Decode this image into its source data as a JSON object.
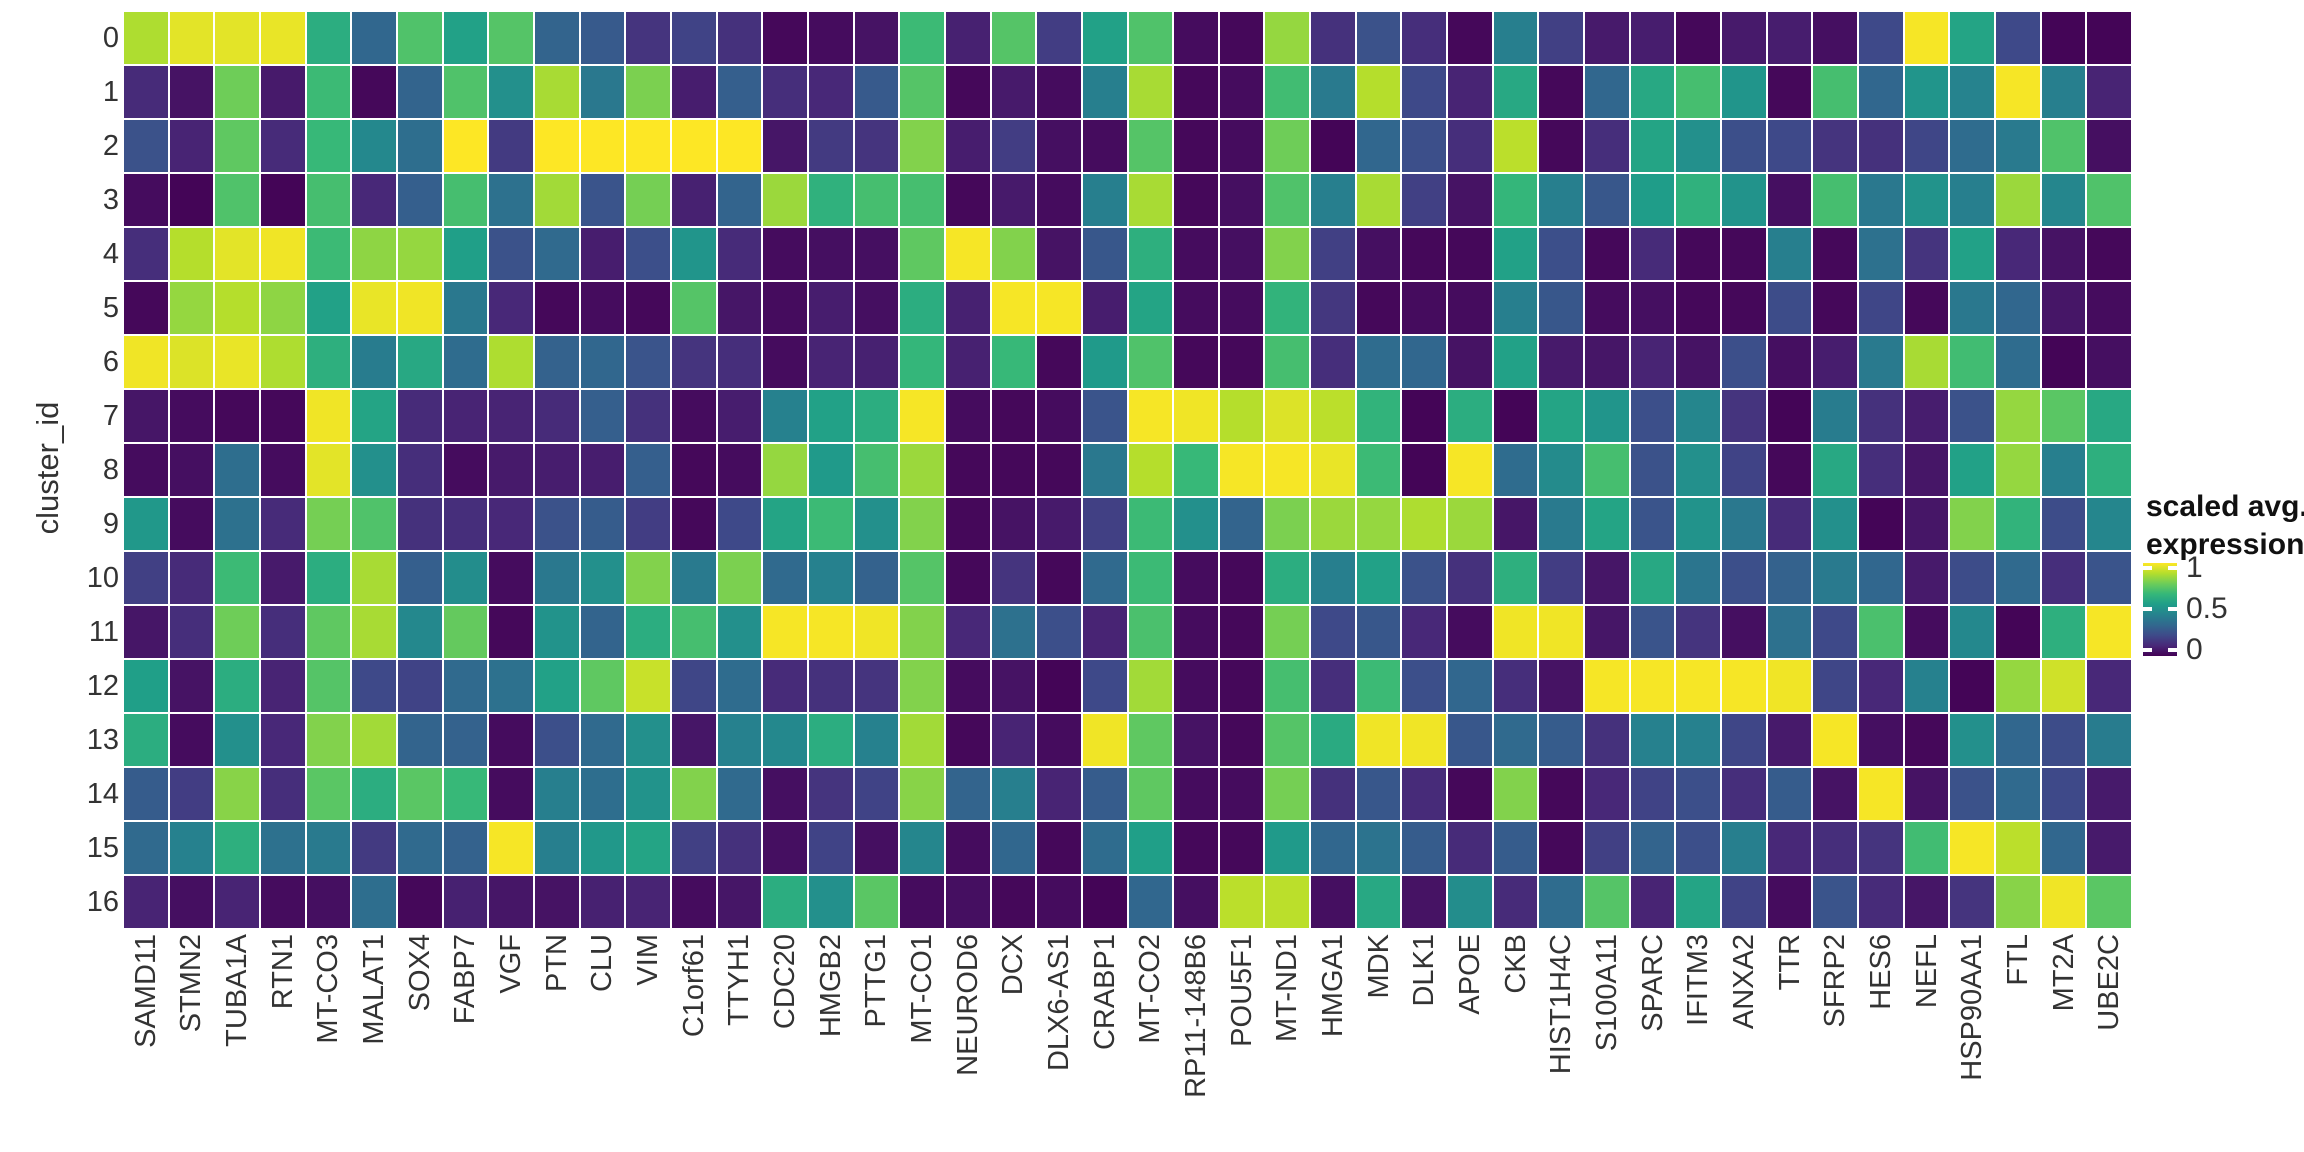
{
  "figure": {
    "ylabel": "cluster_id",
    "legend": {
      "title_line1": "scaled avg.",
      "title_line2": "expression",
      "ticks": [
        {
          "label": "1",
          "value": 1.0
        },
        {
          "label": "0.5",
          "value": 0.5
        },
        {
          "label": "0",
          "value": 0.0
        }
      ]
    },
    "colors": {
      "background": "#ffffff",
      "grid_gap": "#ffffff",
      "text": "#333333",
      "viridis_stops": [
        "#440154",
        "#482878",
        "#3e4a89",
        "#31688e",
        "#26828e",
        "#1f9e89",
        "#35b779",
        "#6dcd59",
        "#b4de2c",
        "#fde725"
      ]
    }
  },
  "chart_data": {
    "type": "heatmap",
    "title": "",
    "xlabel": "",
    "ylabel": "cluster_id",
    "legend_title": "scaled avg. expression",
    "value_range": [
      0,
      1
    ],
    "colormap": "viridis",
    "rows": [
      "0",
      "1",
      "2",
      "3",
      "4",
      "5",
      "6",
      "7",
      "8",
      "9",
      "10",
      "11",
      "12",
      "13",
      "14",
      "15",
      "16"
    ],
    "columns": [
      "SAMD11",
      "STMN2",
      "TUBA1A",
      "RTN1",
      "MT-CO3",
      "MALAT1",
      "SOX4",
      "FABP7",
      "VGF",
      "PTN",
      "CLU",
      "VIM",
      "C1orf61",
      "TTYH1",
      "CDC20",
      "HMGB2",
      "PTTG1",
      "MT-CO1",
      "NEUROD6",
      "DCX",
      "DLX6-AS1",
      "CRABP1",
      "MT-CO2",
      "RP11-148B6",
      "POU5F1",
      "MT-ND1",
      "HMGA1",
      "MDK",
      "DLK1",
      "APOE",
      "CKB",
      "HIST1H4C",
      "S100A11",
      "SPARC",
      "IFITM3",
      "ANXA2",
      "TTR",
      "SFRP2",
      "HES6",
      "NEFL",
      "HSP90AA1",
      "FTL",
      "MT2A",
      "UBE2C"
    ],
    "values": [
      [
        0.88,
        0.96,
        0.96,
        0.97,
        0.62,
        0.33,
        0.72,
        0.57,
        0.73,
        0.32,
        0.28,
        0.15,
        0.2,
        0.14,
        0.02,
        0.03,
        0.05,
        0.68,
        0.09,
        0.73,
        0.18,
        0.57,
        0.72,
        0.03,
        0.02,
        0.84,
        0.14,
        0.25,
        0.13,
        0.02,
        0.43,
        0.19,
        0.07,
        0.08,
        0.02,
        0.07,
        0.08,
        0.04,
        0.22,
        0.99,
        0.58,
        0.22,
        0.01,
        0.01
      ],
      [
        0.12,
        0.05,
        0.78,
        0.07,
        0.68,
        0.02,
        0.32,
        0.72,
        0.5,
        0.87,
        0.4,
        0.8,
        0.08,
        0.3,
        0.13,
        0.11,
        0.28,
        0.73,
        0.02,
        0.07,
        0.03,
        0.43,
        0.87,
        0.02,
        0.03,
        0.69,
        0.41,
        0.89,
        0.22,
        0.1,
        0.6,
        0.02,
        0.33,
        0.6,
        0.7,
        0.52,
        0.02,
        0.7,
        0.33,
        0.52,
        0.45,
        0.99,
        0.43,
        0.1
      ],
      [
        0.25,
        0.1,
        0.75,
        0.12,
        0.67,
        0.47,
        0.36,
        1.0,
        0.17,
        1.0,
        1.0,
        1.0,
        1.0,
        1.0,
        0.06,
        0.17,
        0.15,
        0.81,
        0.08,
        0.18,
        0.04,
        0.03,
        0.73,
        0.02,
        0.03,
        0.78,
        0.01,
        0.33,
        0.24,
        0.13,
        0.9,
        0.02,
        0.13,
        0.58,
        0.5,
        0.24,
        0.22,
        0.15,
        0.14,
        0.21,
        0.35,
        0.41,
        0.72,
        0.04
      ],
      [
        0.03,
        0.01,
        0.72,
        0.01,
        0.7,
        0.11,
        0.3,
        0.7,
        0.37,
        0.86,
        0.26,
        0.79,
        0.09,
        0.32,
        0.85,
        0.64,
        0.7,
        0.7,
        0.02,
        0.07,
        0.03,
        0.43,
        0.87,
        0.02,
        0.04,
        0.72,
        0.43,
        0.87,
        0.19,
        0.05,
        0.66,
        0.43,
        0.27,
        0.55,
        0.64,
        0.51,
        0.04,
        0.7,
        0.4,
        0.51,
        0.43,
        0.85,
        0.46,
        0.72
      ],
      [
        0.13,
        0.89,
        0.96,
        0.98,
        0.68,
        0.83,
        0.84,
        0.56,
        0.25,
        0.34,
        0.08,
        0.24,
        0.52,
        0.12,
        0.03,
        0.04,
        0.04,
        0.75,
        0.99,
        0.81,
        0.05,
        0.27,
        0.63,
        0.03,
        0.04,
        0.81,
        0.19,
        0.04,
        0.02,
        0.02,
        0.57,
        0.24,
        0.02,
        0.12,
        0.02,
        0.02,
        0.43,
        0.02,
        0.37,
        0.15,
        0.57,
        0.11,
        0.05,
        0.02
      ],
      [
        0.02,
        0.84,
        0.89,
        0.83,
        0.57,
        0.97,
        0.98,
        0.4,
        0.11,
        0.02,
        0.03,
        0.02,
        0.73,
        0.06,
        0.03,
        0.08,
        0.04,
        0.62,
        0.09,
        0.99,
        0.99,
        0.08,
        0.58,
        0.03,
        0.03,
        0.65,
        0.16,
        0.02,
        0.03,
        0.03,
        0.43,
        0.27,
        0.03,
        0.04,
        0.02,
        0.02,
        0.23,
        0.02,
        0.21,
        0.02,
        0.4,
        0.33,
        0.06,
        0.03
      ],
      [
        0.98,
        0.95,
        0.97,
        0.88,
        0.63,
        0.42,
        0.6,
        0.35,
        0.88,
        0.31,
        0.33,
        0.26,
        0.15,
        0.13,
        0.03,
        0.1,
        0.09,
        0.66,
        0.09,
        0.67,
        0.02,
        0.54,
        0.72,
        0.02,
        0.02,
        0.7,
        0.13,
        0.35,
        0.33,
        0.05,
        0.57,
        0.07,
        0.06,
        0.1,
        0.05,
        0.24,
        0.04,
        0.08,
        0.41,
        0.87,
        0.69,
        0.35,
        0.01,
        0.04
      ],
      [
        0.06,
        0.03,
        0.02,
        0.02,
        0.98,
        0.58,
        0.12,
        0.1,
        0.1,
        0.12,
        0.3,
        0.14,
        0.03,
        0.08,
        0.44,
        0.57,
        0.62,
        0.99,
        0.03,
        0.02,
        0.03,
        0.26,
        0.99,
        0.98,
        0.89,
        0.95,
        0.9,
        0.65,
        0.01,
        0.62,
        0.01,
        0.58,
        0.52,
        0.24,
        0.46,
        0.15,
        0.01,
        0.42,
        0.14,
        0.08,
        0.25,
        0.84,
        0.74,
        0.6
      ],
      [
        0.03,
        0.04,
        0.36,
        0.03,
        0.96,
        0.5,
        0.13,
        0.03,
        0.07,
        0.08,
        0.08,
        0.3,
        0.02,
        0.03,
        0.84,
        0.54,
        0.7,
        0.85,
        0.02,
        0.02,
        0.02,
        0.4,
        0.89,
        0.67,
        0.99,
        0.99,
        0.97,
        0.68,
        0.01,
        0.99,
        0.35,
        0.48,
        0.7,
        0.25,
        0.5,
        0.2,
        0.02,
        0.6,
        0.13,
        0.06,
        0.57,
        0.84,
        0.43,
        0.63
      ],
      [
        0.53,
        0.03,
        0.37,
        0.12,
        0.79,
        0.72,
        0.14,
        0.13,
        0.11,
        0.25,
        0.29,
        0.18,
        0.02,
        0.22,
        0.58,
        0.68,
        0.5,
        0.81,
        0.02,
        0.05,
        0.07,
        0.19,
        0.68,
        0.5,
        0.32,
        0.8,
        0.85,
        0.84,
        0.88,
        0.85,
        0.06,
        0.41,
        0.58,
        0.26,
        0.51,
        0.4,
        0.12,
        0.5,
        0.01,
        0.06,
        0.81,
        0.65,
        0.23,
        0.46
      ],
      [
        0.19,
        0.12,
        0.68,
        0.07,
        0.62,
        0.87,
        0.3,
        0.49,
        0.03,
        0.4,
        0.5,
        0.81,
        0.41,
        0.8,
        0.34,
        0.44,
        0.31,
        0.73,
        0.02,
        0.15,
        0.02,
        0.34,
        0.68,
        0.03,
        0.02,
        0.62,
        0.43,
        0.57,
        0.25,
        0.14,
        0.63,
        0.18,
        0.06,
        0.6,
        0.39,
        0.24,
        0.31,
        0.41,
        0.33,
        0.07,
        0.23,
        0.34,
        0.13,
        0.26
      ],
      [
        0.06,
        0.13,
        0.78,
        0.13,
        0.75,
        0.87,
        0.47,
        0.76,
        0.02,
        0.51,
        0.32,
        0.62,
        0.7,
        0.5,
        0.99,
        0.99,
        0.98,
        0.81,
        0.11,
        0.37,
        0.24,
        0.1,
        0.71,
        0.03,
        0.02,
        0.79,
        0.22,
        0.27,
        0.11,
        0.03,
        0.98,
        0.98,
        0.06,
        0.26,
        0.15,
        0.04,
        0.37,
        0.22,
        0.71,
        0.03,
        0.47,
        0.01,
        0.63,
        0.99
      ],
      [
        0.56,
        0.05,
        0.62,
        0.1,
        0.73,
        0.22,
        0.2,
        0.34,
        0.37,
        0.57,
        0.75,
        0.92,
        0.21,
        0.35,
        0.12,
        0.14,
        0.15,
        0.81,
        0.03,
        0.05,
        0.01,
        0.22,
        0.86,
        0.03,
        0.02,
        0.7,
        0.13,
        0.68,
        0.24,
        0.33,
        0.13,
        0.05,
        0.99,
        0.99,
        0.99,
        0.99,
        0.98,
        0.21,
        0.11,
        0.44,
        0.01,
        0.84,
        0.93,
        0.11
      ],
      [
        0.62,
        0.03,
        0.5,
        0.11,
        0.81,
        0.86,
        0.32,
        0.31,
        0.03,
        0.24,
        0.34,
        0.5,
        0.06,
        0.44,
        0.47,
        0.62,
        0.44,
        0.86,
        0.02,
        0.1,
        0.03,
        0.98,
        0.75,
        0.05,
        0.02,
        0.73,
        0.61,
        0.98,
        0.98,
        0.27,
        0.34,
        0.29,
        0.14,
        0.44,
        0.44,
        0.21,
        0.07,
        0.99,
        0.04,
        0.02,
        0.5,
        0.33,
        0.23,
        0.42
      ],
      [
        0.29,
        0.18,
        0.82,
        0.13,
        0.74,
        0.62,
        0.74,
        0.67,
        0.03,
        0.43,
        0.36,
        0.51,
        0.81,
        0.34,
        0.04,
        0.15,
        0.2,
        0.82,
        0.32,
        0.43,
        0.1,
        0.29,
        0.75,
        0.03,
        0.03,
        0.79,
        0.14,
        0.27,
        0.12,
        0.02,
        0.81,
        0.02,
        0.11,
        0.2,
        0.24,
        0.13,
        0.29,
        0.05,
        0.99,
        0.05,
        0.25,
        0.34,
        0.22,
        0.07
      ],
      [
        0.34,
        0.44,
        0.63,
        0.37,
        0.41,
        0.17,
        0.34,
        0.31,
        0.99,
        0.43,
        0.53,
        0.58,
        0.19,
        0.14,
        0.04,
        0.2,
        0.04,
        0.46,
        0.03,
        0.33,
        0.02,
        0.35,
        0.56,
        0.02,
        0.02,
        0.54,
        0.33,
        0.38,
        0.29,
        0.12,
        0.29,
        0.02,
        0.19,
        0.32,
        0.24,
        0.43,
        0.11,
        0.13,
        0.15,
        0.69,
        0.99,
        0.9,
        0.33,
        0.07
      ],
      [
        0.1,
        0.04,
        0.1,
        0.03,
        0.04,
        0.36,
        0.02,
        0.09,
        0.06,
        0.05,
        0.09,
        0.1,
        0.03,
        0.06,
        0.62,
        0.5,
        0.74,
        0.03,
        0.04,
        0.02,
        0.03,
        0.01,
        0.33,
        0.04,
        0.9,
        0.9,
        0.04,
        0.6,
        0.05,
        0.49,
        0.12,
        0.35,
        0.73,
        0.1,
        0.58,
        0.2,
        0.03,
        0.26,
        0.12,
        0.06,
        0.15,
        0.82,
        0.98,
        0.74
      ]
    ]
  }
}
